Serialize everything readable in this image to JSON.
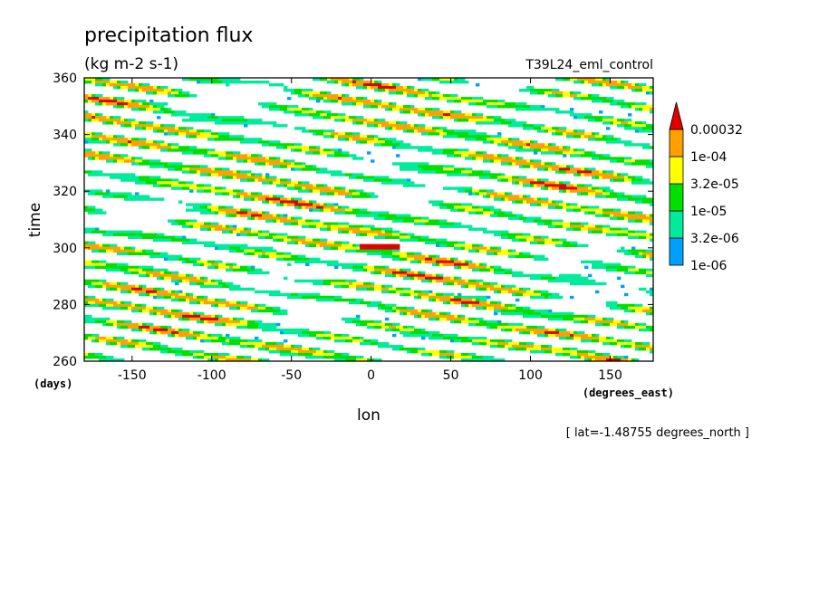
{
  "chart_data": {
    "type": "heatmap",
    "title": "precipitation flux",
    "units": "(kg m-2 s-1)",
    "experiment": "T39L24_eml_control",
    "xlabel": "lon",
    "ylabel": "time",
    "x_units": "(degrees_east)",
    "y_units": "(days)",
    "slice_note": "[ lat=-1.48755 degrees_north ]",
    "xlim": [
      -180,
      177
    ],
    "ylim": [
      260,
      360
    ],
    "x_ticks": [
      -150,
      -100,
      -50,
      0,
      50,
      100,
      150
    ],
    "x_tick_labels": [
      "-150",
      "-100",
      "-50",
      "0",
      "50",
      "100",
      "150"
    ],
    "y_ticks": [
      260,
      280,
      300,
      320,
      340,
      360
    ],
    "y_tick_labels": [
      "260",
      "280",
      "300",
      "320",
      "340",
      "360"
    ],
    "levels": [
      "1e-06",
      "3.2e-06",
      "1e-05",
      "3.2e-05",
      "1e-04",
      "0.00032"
    ],
    "level_colors": [
      "#00a0ff",
      "#00ec9a",
      "#00e000",
      "#ffff00",
      "#ffa000",
      "#e00000"
    ],
    "pattern": {
      "description_of_features": "westward-propagating precipitation bands",
      "band_slope_deg_lon_per_day": -12,
      "band_spacing_days": 6.5,
      "peak_value": 0.00032
    }
  }
}
